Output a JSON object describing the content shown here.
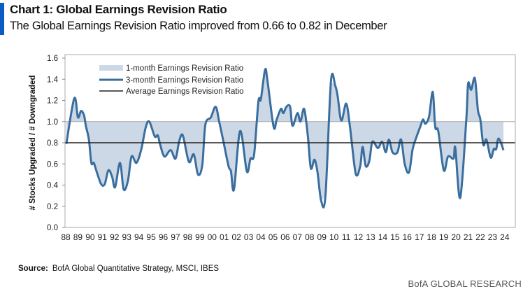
{
  "header": {
    "title": "Chart 1: Global Earnings Revision Ratio",
    "subtitle": "The Global Earnings Revision Ratio improved from 0.66 to 0.82 in December"
  },
  "footer": {
    "source_label": "Source:",
    "source_text": "BofA Global Quantitative Strategy, MSCI, IBES",
    "brand": "BofA GLOBAL RESEARCH"
  },
  "chart_data": {
    "type": "line",
    "title": "Global Earnings Revision Ratio",
    "ylabel": "# Stocks Upgraded / # Downgraded",
    "xlabel": "",
    "ylim": [
      0,
      1.6
    ],
    "yticks": [
      "0.0",
      "0.2",
      "0.4",
      "0.6",
      "0.8",
      "1.0",
      "1.2",
      "1.4",
      "1.6"
    ],
    "xlim": [
      1988,
      2024.9
    ],
    "xticks": [
      "88",
      "89",
      "90",
      "91",
      "92",
      "93",
      "94",
      "95",
      "96",
      "97",
      "98",
      "99",
      "00",
      "01",
      "02",
      "03",
      "04",
      "05",
      "06",
      "07",
      "08",
      "09",
      "10",
      "11",
      "12",
      "13",
      "14",
      "15",
      "16",
      "17",
      "18",
      "19",
      "20",
      "21",
      "22",
      "23",
      "24"
    ],
    "colors": {
      "three_month": "#3a6e9f",
      "one_month_fill": "#cdd8e6",
      "average": "#222222",
      "reference": "#a8a8a8"
    },
    "legend": {
      "placement": "top-left",
      "entries": [
        "1-month Earnings Revision Ratio",
        "3-month Earnings Revision Ratio",
        "Average Earnings Revision Ratio"
      ]
    },
    "average_value": 0.8,
    "reference_value": 1.0,
    "series": [
      {
        "name": "3-month Earnings Revision Ratio",
        "x": [
          1988.05,
          1988.7,
          1989.0,
          1989.25,
          1989.5,
          1989.65,
          1989.9,
          1990.1,
          1990.3,
          1990.5,
          1990.9,
          1991.2,
          1991.5,
          1991.8,
          1992.05,
          1992.45,
          1992.75,
          1993.1,
          1993.4,
          1993.8,
          1994.2,
          1994.55,
          1994.85,
          1995.3,
          1995.55,
          1995.75,
          1996.1,
          1996.6,
          1997.0,
          1997.3,
          1997.6,
          1998.1,
          1998.5,
          1998.85,
          1999.2,
          1999.45,
          1999.9,
          2000.3,
          2000.6,
          2000.9,
          2001.35,
          2001.55,
          2001.8,
          2002.3,
          2002.85,
          2003.15,
          2003.45,
          2003.8,
          2004.0,
          2004.35,
          2004.55,
          2005.05,
          2005.3,
          2005.65,
          2005.85,
          2006.1,
          2006.4,
          2006.6,
          2007.0,
          2007.25,
          2007.55,
          2007.85,
          2008.1,
          2008.4,
          2008.65,
          2008.95,
          2009.3,
          2009.75,
          2010.1,
          2010.3,
          2010.6,
          2011.0,
          2011.3,
          2011.45,
          2011.8,
          2012.15,
          2012.35,
          2012.6,
          2012.9,
          2013.15,
          2013.6,
          2013.95,
          2014.25,
          2014.5,
          2014.8,
          2015.2,
          2015.5,
          2015.8,
          2016.15,
          2016.45,
          2016.75,
          2017.1,
          2017.3,
          2017.5,
          2017.8,
          2018.1,
          2018.3,
          2018.55,
          2019.0,
          2019.35,
          2019.8,
          2019.95,
          2020.35,
          2020.85,
          2021.0,
          2021.25,
          2021.55,
          2021.8,
          2022.0,
          2022.25,
          2022.5,
          2022.85,
          2023.1,
          2023.3,
          2023.5,
          2023.9
        ],
        "values": [
          0.79,
          1.22,
          1.04,
          1.1,
          1.06,
          0.96,
          0.83,
          0.61,
          0.61,
          0.54,
          0.41,
          0.41,
          0.54,
          0.48,
          0.38,
          0.61,
          0.36,
          0.44,
          0.67,
          0.61,
          0.74,
          0.94,
          1.0,
          0.86,
          0.87,
          0.78,
          0.67,
          0.73,
          0.65,
          0.81,
          0.87,
          0.62,
          0.69,
          0.5,
          0.59,
          0.97,
          1.04,
          1.14,
          0.99,
          0.83,
          0.58,
          0.53,
          0.36,
          0.91,
          0.53,
          0.65,
          0.69,
          1.19,
          1.21,
          1.49,
          1.38,
          0.95,
          1.02,
          1.12,
          1.08,
          1.14,
          1.14,
          0.96,
          1.08,
          1.0,
          1.12,
          0.87,
          0.56,
          0.64,
          0.52,
          0.25,
          0.3,
          1.38,
          1.34,
          1.24,
          1.01,
          1.17,
          0.96,
          0.81,
          0.5,
          0.58,
          0.76,
          0.58,
          0.63,
          0.81,
          0.75,
          0.81,
          0.71,
          0.83,
          0.71,
          0.71,
          0.83,
          0.6,
          0.52,
          0.74,
          0.85,
          0.96,
          1.02,
          0.98,
          1.05,
          1.28,
          0.95,
          0.91,
          0.54,
          0.67,
          0.65,
          0.75,
          0.28,
          1.02,
          1.36,
          1.3,
          1.41,
          1.11,
          1.02,
          0.78,
          0.83,
          0.66,
          0.74,
          0.74,
          0.84,
          0.73
        ]
      }
    ]
  }
}
